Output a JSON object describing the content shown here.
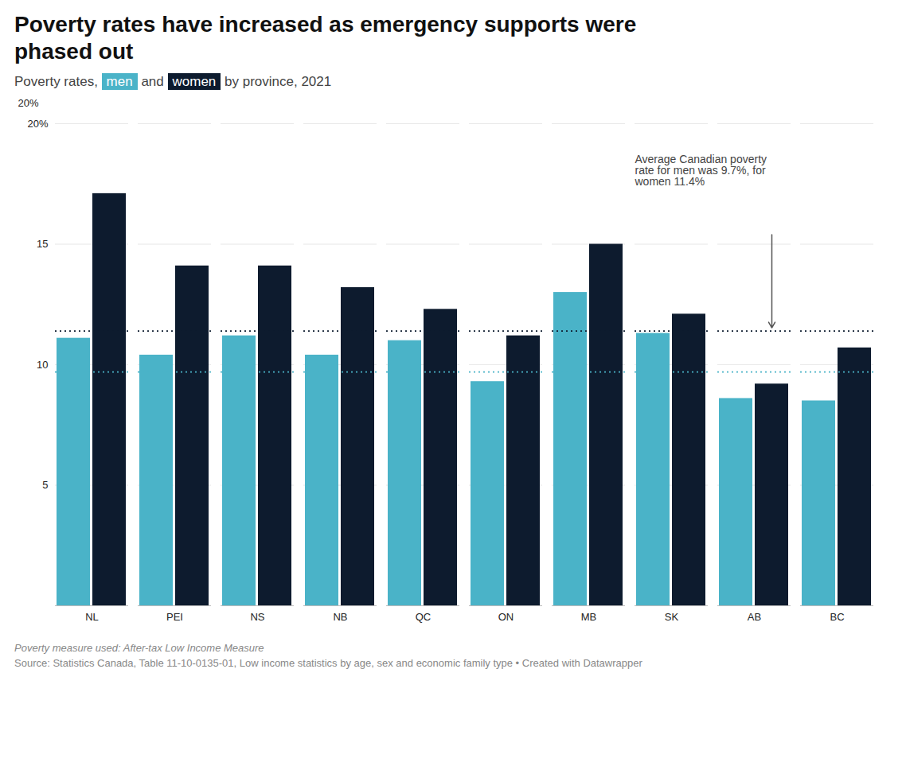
{
  "chart_data": {
    "type": "bar",
    "title": "Poverty rates have increased as emergency supports were\nphased out",
    "subtitle": "Poverty rates, men and women by province, 2021",
    "categories": [
      "NL",
      "PEI",
      "NS",
      "NB",
      "QC",
      "ON",
      "MB",
      "SK",
      "AB",
      "BC"
    ],
    "series": [
      {
        "name": "men",
        "color": "#4ab3c8",
        "values": [
          11.1,
          10.4,
          11.2,
          10.4,
          11.0,
          9.3,
          13.0,
          11.3,
          8.6,
          8.5
        ],
        "average": 9.7
      },
      {
        "name": "women",
        "color": "#0d1b2e",
        "values": [
          17.1,
          14.1,
          14.1,
          13.2,
          12.3,
          11.2,
          15.0,
          12.1,
          9.2,
          10.7
        ],
        "average": 11.4
      }
    ],
    "ylim": [
      0,
      20
    ],
    "yticks": [
      5,
      10,
      15,
      {
        "value": 20,
        "label": "20%"
      }
    ],
    "ylabel": "20%",
    "grid": true,
    "annotation": "Average Canadian poverty rate for men was 9.7%, for women 11.4%",
    "footnotes": [
      "Poverty measure used: After-tax Low Income Measure",
      "Source: Statistics Canada, Table 11-10-0135-01, Low income statistics by age, sex and economic family type • Created with Datawrapper"
    ]
  }
}
